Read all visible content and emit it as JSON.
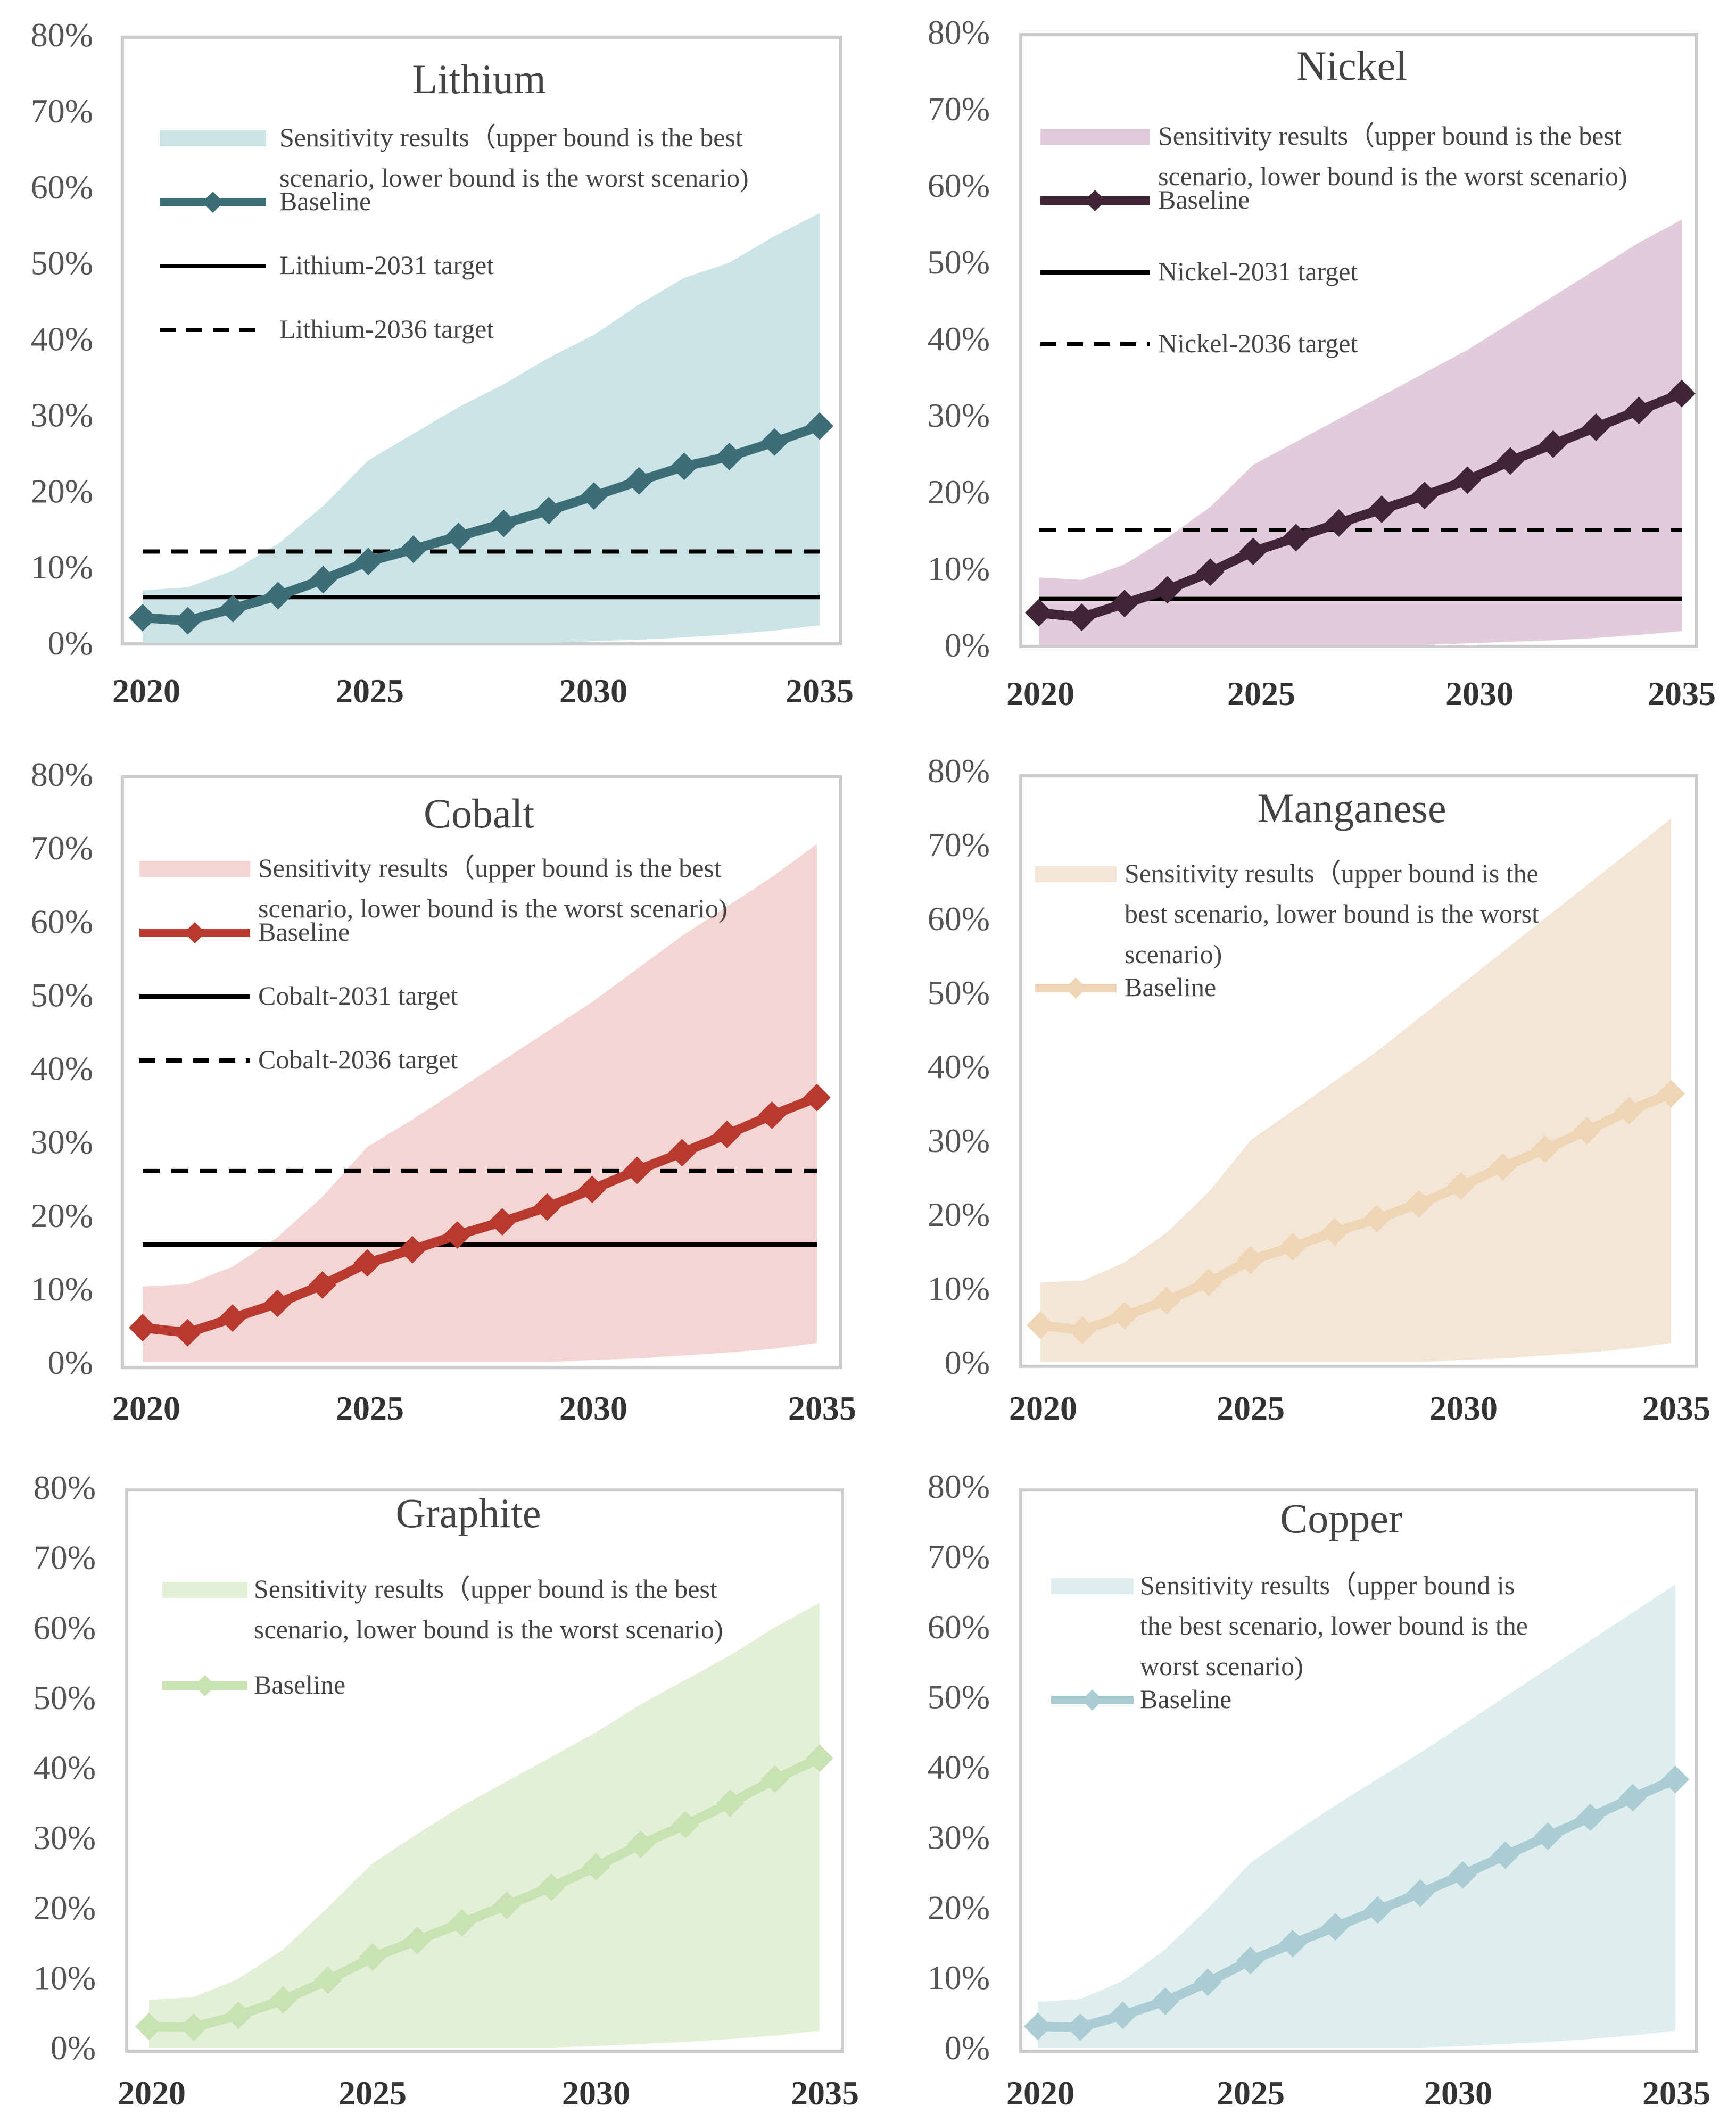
{
  "chart_data": [
    {
      "type": "line",
      "title": "Lithium",
      "x": [
        2020,
        2021,
        2022,
        2023,
        2024,
        2025,
        2026,
        2027,
        2028,
        2029,
        2030,
        2031,
        2032,
        2033,
        2034,
        2035
      ],
      "xticks": [
        "2020",
        "2025",
        "2030",
        "2035"
      ],
      "yticks": [
        "0%",
        "10%",
        "20%",
        "30%",
        "40%",
        "50%",
        "60%",
        "70%",
        "80%"
      ],
      "ylim": [
        0,
        80
      ],
      "colors": {
        "band": "#cbe4e8",
        "line": "#3d6e76"
      },
      "series": [
        {
          "name": "Baseline",
          "values": [
            3.3,
            2.9,
            4.5,
            6.2,
            8.3,
            10.7,
            12.3,
            14.0,
            15.7,
            17.4,
            19.3,
            21.3,
            23.2,
            24.5,
            26.4,
            28.5
          ]
        },
        {
          "name": "Sensitivity upper",
          "values": [
            6.9,
            7.3,
            9.5,
            13.0,
            18.0,
            24.0,
            27.5,
            31.0,
            34.0,
            37.5,
            40.5,
            44.5,
            48.0,
            50.0,
            53.5,
            56.5
          ]
        },
        {
          "name": "Sensitivity lower",
          "values": [
            0,
            0,
            0,
            0,
            0,
            0,
            0,
            0,
            0,
            0,
            0.2,
            0.4,
            0.7,
            1.1,
            1.6,
            2.3
          ]
        },
        {
          "name": "Lithium-2031 target",
          "values": [
            6,
            6,
            6,
            6,
            6,
            6,
            6,
            6,
            6,
            6,
            6,
            6,
            6,
            6,
            6,
            6
          ]
        },
        {
          "name": "Lithium-2036 target",
          "values": [
            12,
            12,
            12,
            12,
            12,
            12,
            12,
            12,
            12,
            12,
            12,
            12,
            12,
            12,
            12,
            12
          ]
        }
      ],
      "legend": {
        "band": [
          "Sensitivity results（upper bound is the best",
          "scenario, lower bound is the worst scenario)"
        ],
        "baseline": "Baseline",
        "target_solid": "Lithium-2031 target",
        "target_dashed": "Lithium-2036 target"
      }
    },
    {
      "type": "line",
      "title": "Nickel",
      "x": [
        2020,
        2021,
        2022,
        2023,
        2024,
        2025,
        2026,
        2027,
        2028,
        2029,
        2030,
        2031,
        2032,
        2033,
        2034,
        2035
      ],
      "xticks": [
        "2020",
        "2025",
        "2030",
        "2035"
      ],
      "yticks": [
        "0%",
        "10%",
        "20%",
        "30%",
        "40%",
        "50%",
        "60%",
        "70%",
        "80%"
      ],
      "ylim": [
        0,
        80
      ],
      "colors": {
        "band": "#e2ccdc",
        "line": "#3f2535"
      },
      "series": [
        {
          "name": "Baseline",
          "values": [
            4.2,
            3.6,
            5.4,
            7.2,
            9.5,
            12.2,
            14.0,
            15.9,
            17.7,
            19.5,
            21.5,
            24.0,
            26.2,
            28.4,
            30.6,
            32.8
          ]
        },
        {
          "name": "Sensitivity upper",
          "values": [
            8.8,
            8.5,
            10.5,
            14.0,
            18.0,
            23.5,
            26.5,
            29.5,
            32.5,
            35.5,
            38.5,
            42.0,
            45.5,
            49.0,
            52.5,
            55.5
          ]
        },
        {
          "name": "Sensitivity lower",
          "values": [
            0,
            0,
            0,
            0,
            0,
            0,
            0,
            0,
            0,
            0,
            0.2,
            0.4,
            0.6,
            0.9,
            1.3,
            1.8
          ]
        },
        {
          "name": "Nickel-2031 target",
          "values": [
            6,
            6,
            6,
            6,
            6,
            6,
            6,
            6,
            6,
            6,
            6,
            6,
            6,
            6,
            6,
            6
          ]
        },
        {
          "name": "Nickel-2036 target",
          "values": [
            15,
            15,
            15,
            15,
            15,
            15,
            15,
            15,
            15,
            15,
            15,
            15,
            15,
            15,
            15,
            15
          ]
        }
      ],
      "legend": {
        "band": [
          "Sensitivity results（upper bound is the best",
          "scenario, lower bound is the worst scenario)"
        ],
        "baseline": "Baseline",
        "target_solid": "Nickel-2031 target",
        "target_dashed": "Nickel-2036 target"
      }
    },
    {
      "type": "line",
      "title": "Cobalt",
      "x": [
        2020,
        2021,
        2022,
        2023,
        2024,
        2025,
        2026,
        2027,
        2028,
        2029,
        2030,
        2031,
        2032,
        2033,
        2034,
        2035
      ],
      "xticks": [
        "2020",
        "2025",
        "2030",
        "2035"
      ],
      "yticks": [
        "0%",
        "10%",
        "20%",
        "30%",
        "40%",
        "50%",
        "60%",
        "70%",
        "80%"
      ],
      "ylim": [
        0,
        80
      ],
      "colors": {
        "band": "#f5d5d3",
        "line": "#b8392d"
      },
      "series": [
        {
          "name": "Baseline",
          "values": [
            4.7,
            4.0,
            6.0,
            8.0,
            10.5,
            13.5,
            15.3,
            17.3,
            19.1,
            21.1,
            23.5,
            26.1,
            28.5,
            31.0,
            33.6,
            36.0
          ]
        },
        {
          "name": "Sensitivity upper",
          "values": [
            10.3,
            10.6,
            13.0,
            17.0,
            22.5,
            29.3,
            33.0,
            37.0,
            41.0,
            45.0,
            49.0,
            53.5,
            58.0,
            62.0,
            66.0,
            70.5
          ]
        },
        {
          "name": "Sensitivity lower",
          "values": [
            0,
            0,
            0,
            0,
            0,
            0,
            0,
            0,
            0,
            0,
            0.3,
            0.5,
            0.9,
            1.3,
            1.8,
            2.6
          ]
        },
        {
          "name": "Cobalt-2031 target",
          "values": [
            16,
            16,
            16,
            16,
            16,
            16,
            16,
            16,
            16,
            16,
            16,
            16,
            16,
            16,
            16,
            16
          ]
        },
        {
          "name": "Cobalt-2036 target",
          "values": [
            26,
            26,
            26,
            26,
            26,
            26,
            26,
            26,
            26,
            26,
            26,
            26,
            26,
            26,
            26,
            26
          ]
        }
      ],
      "legend": {
        "band": [
          "Sensitivity results（upper bound is the best",
          "scenario, lower bound is the worst scenario)"
        ],
        "baseline": "Baseline",
        "target_solid": "Cobalt-2031 target",
        "target_dashed": "Cobalt-2036 target"
      }
    },
    {
      "type": "line",
      "title": "Manganese",
      "x": [
        2020,
        2021,
        2022,
        2023,
        2024,
        2025,
        2026,
        2027,
        2028,
        2029,
        2030,
        2031,
        2032,
        2033,
        2034,
        2035
      ],
      "xticks": [
        "2020",
        "2025",
        "2030",
        "2035"
      ],
      "yticks": [
        "0%",
        "10%",
        "20%",
        "30%",
        "40%",
        "50%",
        "60%",
        "70%",
        "80%"
      ],
      "ylim": [
        0,
        80
      ],
      "colors": {
        "band": "#f3e6d6",
        "line": "#f0d5b4"
      },
      "series": [
        {
          "name": "Baseline",
          "values": [
            5.0,
            4.3,
            6.3,
            8.3,
            10.8,
            13.8,
            15.6,
            17.6,
            19.4,
            21.4,
            23.8,
            26.4,
            28.8,
            31.3,
            34.0,
            36.3
          ]
        },
        {
          "name": "Sensitivity upper",
          "values": [
            10.8,
            11.0,
            13.5,
            17.5,
            23.0,
            30.0,
            34.0,
            38.0,
            42.0,
            46.5,
            51.0,
            55.5,
            60.0,
            64.5,
            69.0,
            73.5
          ]
        },
        {
          "name": "Sensitivity lower",
          "values": [
            0,
            0,
            0,
            0,
            0,
            0,
            0,
            0,
            0,
            0,
            0.3,
            0.5,
            0.9,
            1.3,
            1.8,
            2.6
          ]
        }
      ],
      "legend": {
        "band": [
          "Sensitivity results（upper bound is the",
          "best scenario, lower bound is the worst",
          "scenario)"
        ],
        "baseline": "Baseline"
      }
    },
    {
      "type": "line",
      "title": "Graphite",
      "x": [
        2020,
        2021,
        2022,
        2023,
        2024,
        2025,
        2026,
        2027,
        2028,
        2029,
        2030,
        2031,
        2032,
        2033,
        2034,
        2035
      ],
      "xticks": [
        "2020",
        "2025",
        "2030",
        "2035"
      ],
      "yticks": [
        "0%",
        "10%",
        "20%",
        "30%",
        "40%",
        "50%",
        "60%",
        "70%",
        "80%"
      ],
      "ylim": [
        0,
        80
      ],
      "colors": {
        "band": "#e3efd6",
        "line": "#c9e2b3"
      },
      "series": [
        {
          "name": "Baseline",
          "values": [
            3.0,
            2.9,
            4.6,
            6.8,
            9.6,
            12.9,
            15.3,
            17.8,
            20.3,
            22.9,
            25.8,
            29.0,
            31.8,
            34.9,
            38.3,
            41.3
          ]
        },
        {
          "name": "Sensitivity upper",
          "values": [
            6.8,
            7.2,
            9.8,
            14.0,
            20.0,
            26.3,
            30.5,
            34.5,
            38.0,
            41.5,
            45.0,
            49.0,
            52.5,
            56.0,
            60.0,
            63.5
          ]
        },
        {
          "name": "Sensitivity lower",
          "values": [
            0,
            0,
            0,
            0,
            0,
            0,
            0,
            0,
            0,
            0,
            0.2,
            0.5,
            0.8,
            1.2,
            1.7,
            2.4
          ]
        }
      ],
      "legend": {
        "band": [
          "Sensitivity results（upper bound is the best",
          "scenario, lower bound is the worst scenario)"
        ],
        "baseline": "Baseline"
      }
    },
    {
      "type": "line",
      "title": "Copper",
      "x": [
        2020,
        2021,
        2022,
        2023,
        2024,
        2025,
        2026,
        2027,
        2028,
        2029,
        2030,
        2031,
        2032,
        2033,
        2034,
        2035
      ],
      "xticks": [
        "2020",
        "2025",
        "2030",
        "2035"
      ],
      "yticks": [
        "0%",
        "10%",
        "20%",
        "30%",
        "40%",
        "50%",
        "60%",
        "70%",
        "80%"
      ],
      "ylim": [
        0,
        80
      ],
      "colors": {
        "band": "#deeded",
        "line": "#a9cdd2"
      },
      "series": [
        {
          "name": "Baseline",
          "values": [
            3.0,
            2.9,
            4.6,
            6.6,
            9.3,
            12.4,
            14.8,
            17.2,
            19.6,
            22.0,
            24.6,
            27.4,
            30.1,
            32.8,
            35.6,
            38.2
          ]
        },
        {
          "name": "Sensitivity upper",
          "values": [
            6.5,
            6.9,
            9.5,
            14.0,
            19.8,
            26.3,
            30.5,
            34.5,
            38.3,
            42.0,
            46.0,
            50.0,
            54.0,
            58.0,
            62.0,
            66.0
          ]
        },
        {
          "name": "Sensitivity lower",
          "values": [
            0,
            0,
            0,
            0,
            0,
            0,
            0,
            0,
            0,
            0,
            0.2,
            0.5,
            0.8,
            1.2,
            1.7,
            2.4
          ]
        }
      ],
      "legend": {
        "band": [
          "Sensitivity results（upper bound is",
          "the best scenario, lower bound is the",
          "worst scenario)"
        ],
        "baseline": "Baseline"
      }
    }
  ]
}
